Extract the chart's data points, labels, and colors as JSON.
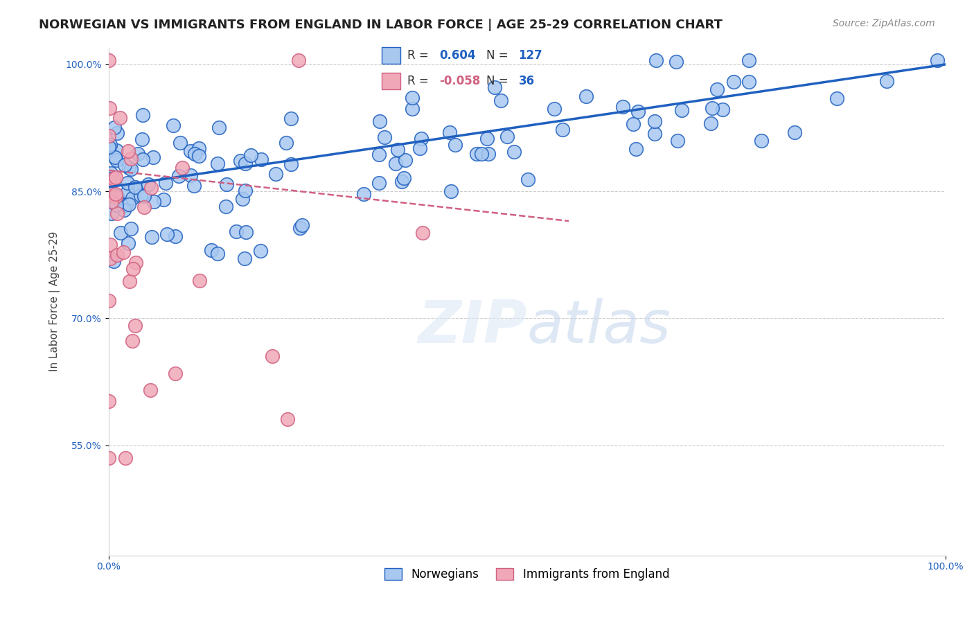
{
  "title": "NORWEGIAN VS IMMIGRANTS FROM ENGLAND IN LABOR FORCE | AGE 25-29 CORRELATION CHART",
  "source": "Source: ZipAtlas.com",
  "ylabel": "In Labor Force | Age 25-29",
  "x_min": 0.0,
  "x_max": 1.0,
  "y_min": 0.42,
  "y_max": 1.02,
  "y_ticks": [
    0.55,
    0.7,
    0.85,
    1.0
  ],
  "y_tick_labels": [
    "55.0%",
    "70.0%",
    "85.0%",
    "100.0%"
  ],
  "x_tick_labels": [
    "0.0%",
    "100.0%"
  ],
  "legend_labels": [
    "Norwegians",
    "Immigrants from England"
  ],
  "blue_R": 0.604,
  "blue_N": 127,
  "pink_R": -0.058,
  "pink_N": 36,
  "blue_color": "#a8c8f0",
  "pink_color": "#f0a8b8",
  "blue_line_color": "#2060c0",
  "pink_line_color": "#d06080",
  "background_color": "#ffffff",
  "title_fontsize": 13,
  "source_fontsize": 10,
  "axis_label_fontsize": 11,
  "tick_label_fontsize": 10,
  "blue_seed": 42,
  "pink_seed": 7,
  "blue_trendline": [
    0.0,
    0.855,
    1.0,
    1.0
  ],
  "pink_trendline": [
    0.0,
    0.875,
    0.55,
    0.815
  ]
}
